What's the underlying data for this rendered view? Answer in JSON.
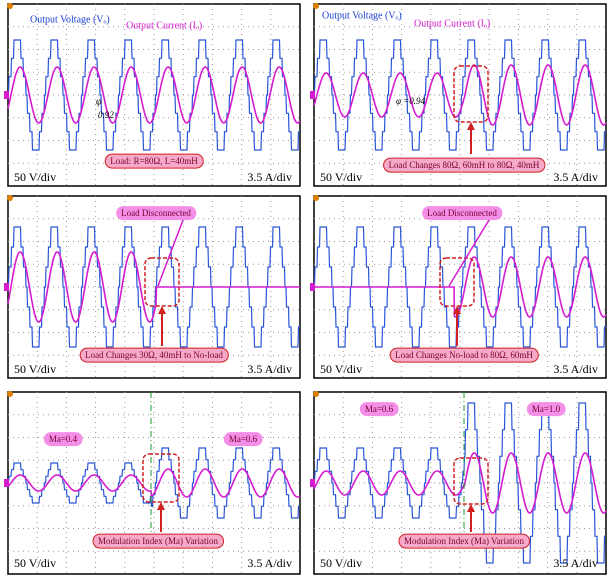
{
  "panels": [
    {
      "voltage_label": "Output Voltage (Vₒ)",
      "current_label": "Output Current (Iₒ)",
      "phase_symbol": "φ",
      "phase_value": "0.92",
      "load_label": "Load: R=80Ω, L=40mH",
      "voltage_scale": "50 V/div",
      "current_scale": "3.5 A/div"
    },
    {
      "voltage_label": "Output Voltage (Vₒ)",
      "current_label": "Output Current (Iₒ)",
      "phase_value": "φ =0.94",
      "load_label": "Load Changes 80Ω, 60mH to 80Ω, 40mH",
      "voltage_scale": "50 V/div",
      "current_scale": "3.5 A/div"
    },
    {
      "event_label": "Load Disconnected",
      "load_label": "Load Changes 30Ω, 40mH to No-load",
      "voltage_scale": "50 V/div",
      "current_scale": "3.5 A/div"
    },
    {
      "event_label": "Load Disconnected",
      "load_label": "Load Changes No-load to 80Ω, 60mH",
      "voltage_scale": "50 V/div",
      "current_scale": "3.5 A/div"
    },
    {
      "index_before": "Ma=0.4",
      "index_after": "Ma=0.6",
      "load_label": "Modulation Index (Ma) Variation",
      "voltage_scale": "50 V/div",
      "current_scale": "3.5 A/div"
    },
    {
      "index_before": "Ma=0.6",
      "index_after": "Ma=1.0",
      "load_label": "Modulation Index (Ma) Variation",
      "voltage_scale": "50 V/div",
      "current_scale": "3.5 A/div"
    }
  ]
}
